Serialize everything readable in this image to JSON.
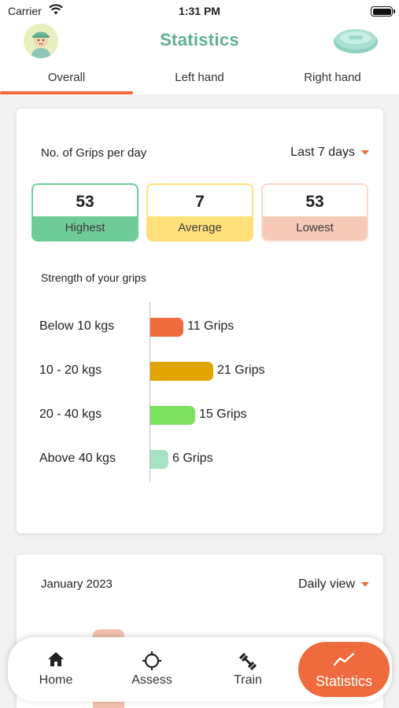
{
  "status_bar": {
    "carrier": "Carrier",
    "time": "1:31 PM"
  },
  "header": {
    "title": "Statistics"
  },
  "tabs": [
    {
      "label": "Overall",
      "active": true
    },
    {
      "label": "Left hand",
      "active": false
    },
    {
      "label": "Right hand",
      "active": false
    }
  ],
  "grips_card": {
    "title": "No. of Grips per day",
    "period": "Last 7 days",
    "stats": [
      {
        "value": "53",
        "label": "Highest",
        "color": "#6fcc99",
        "border": "#6fcc99"
      },
      {
        "value": "7",
        "label": "Average",
        "color": "#ffe07a",
        "border": "#ffe07a"
      },
      {
        "value": "53",
        "label": "Lowest",
        "color": "#f7c9b7",
        "border": "#f7d9cc"
      }
    ],
    "strength_title": "Strength of your grips",
    "strength_rows": [
      {
        "label": "Below 10 kgs",
        "grips": 11,
        "value_label": "11 Grips",
        "color": "#ef6a3c"
      },
      {
        "label": "10 - 20 kgs",
        "grips": 21,
        "value_label": "21 Grips",
        "color": "#e2a400"
      },
      {
        "label": "20 - 40 kgs",
        "grips": 15,
        "value_label": "15 Grips",
        "color": "#7ee05f"
      },
      {
        "label": "Above 40 kgs",
        "grips": 6,
        "value_label": "6 Grips",
        "color": "#a5e2c4"
      }
    ]
  },
  "calendar_card": {
    "title": "January 2023",
    "view": "Daily view"
  },
  "bottom_nav": [
    {
      "label": "Home",
      "icon": "home-icon",
      "active": false
    },
    {
      "label": "Assess",
      "icon": "crosshair-icon",
      "active": false
    },
    {
      "label": "Train",
      "icon": "dumbbell-icon",
      "active": false
    },
    {
      "label": "Statistics",
      "icon": "trend-icon",
      "active": true
    }
  ]
}
